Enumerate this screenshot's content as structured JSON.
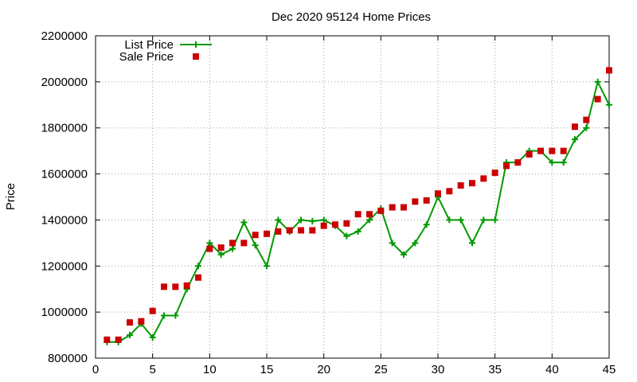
{
  "chart_data": {
    "type": "line",
    "title": "Dec 2020 95124 Home Prices",
    "xlabel": "",
    "ylabel": "Price",
    "xlim": [
      0,
      45
    ],
    "ylim": [
      800000,
      2200000
    ],
    "x_ticks": [
      0,
      5,
      10,
      15,
      20,
      25,
      30,
      35,
      40,
      45
    ],
    "y_ticks": [
      800000,
      1000000,
      1200000,
      1400000,
      1600000,
      1800000,
      2000000,
      2200000
    ],
    "grid": true,
    "legend_position": "top-left",
    "x": [
      1,
      2,
      3,
      4,
      5,
      6,
      7,
      8,
      9,
      10,
      11,
      12,
      13,
      14,
      15,
      16,
      17,
      18,
      19,
      20,
      21,
      22,
      23,
      24,
      25,
      26,
      27,
      28,
      29,
      30,
      31,
      32,
      33,
      34,
      35,
      36,
      37,
      38,
      39,
      40,
      41,
      42,
      43,
      44,
      45
    ],
    "series": [
      {
        "name": "List Price",
        "style": "line-with-plus-markers",
        "color": "#009900",
        "values": [
          870000,
          870000,
          900000,
          950000,
          890000,
          985000,
          985000,
          1100000,
          1200000,
          1300000,
          1250000,
          1275000,
          1390000,
          1290000,
          1200000,
          1400000,
          1350000,
          1400000,
          1395000,
          1400000,
          1375000,
          1330000,
          1350000,
          1400000,
          1450000,
          1300000,
          1250000,
          1300000,
          1380000,
          1500000,
          1400000,
          1400000,
          1300000,
          1400000,
          1400000,
          1650000,
          1650000,
          1700000,
          1700000,
          1650000,
          1650000,
          1750000,
          1800000,
          2000000,
          1900000
        ]
      },
      {
        "name": "Sale Price",
        "style": "square-markers",
        "color": "#cc0000",
        "values": [
          880000,
          880000,
          955000,
          960000,
          1005000,
          1110000,
          1110000,
          1115000,
          1150000,
          1275000,
          1280000,
          1300000,
          1300000,
          1335000,
          1340000,
          1350000,
          1355000,
          1355000,
          1355000,
          1375000,
          1380000,
          1385000,
          1425000,
          1425000,
          1440000,
          1455000,
          1455000,
          1480000,
          1485000,
          1515000,
          1525000,
          1550000,
          1560000,
          1580000,
          1605000,
          1635000,
          1650000,
          1685000,
          1700000,
          1700000,
          1700000,
          1805000,
          1835000,
          1925000,
          2050000
        ]
      }
    ]
  }
}
